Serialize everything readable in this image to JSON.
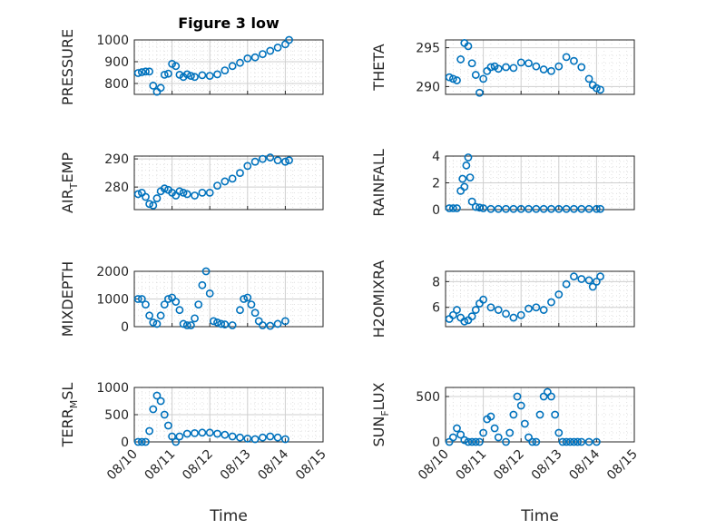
{
  "figure": {
    "title": "Figure 3 low",
    "xlabel": "Time",
    "x_tick_labels": [
      "08/10",
      "08/11",
      "08/12",
      "08/13",
      "08/14",
      "08/15"
    ],
    "marker_color": "#0072BD"
  },
  "chart_data": [
    {
      "type": "scatter",
      "ylabel": "PRESSURE",
      "ylim": [
        750,
        1000
      ],
      "yticks": [
        800,
        900,
        1000
      ],
      "grid": true,
      "x": [
        0.1,
        0.2,
        0.3,
        0.4,
        0.5,
        0.6,
        0.7,
        0.8,
        0.9,
        1.0,
        1.1,
        1.2,
        1.3,
        1.4,
        1.5,
        1.6,
        1.8,
        2.0,
        2.2,
        2.4,
        2.6,
        2.8,
        3.0,
        3.2,
        3.4,
        3.6,
        3.8,
        4.0,
        4.1
      ],
      "y": [
        848,
        852,
        855,
        855,
        790,
        762,
        780,
        840,
        845,
        890,
        880,
        840,
        830,
        842,
        835,
        830,
        838,
        835,
        842,
        860,
        880,
        895,
        915,
        920,
        935,
        950,
        965,
        980,
        1000
      ]
    },
    {
      "type": "scatter",
      "ylabel": "THETA",
      "ylim": [
        289,
        296
      ],
      "yticks": [
        290,
        295
      ],
      "grid": true,
      "x": [
        0.1,
        0.2,
        0.3,
        0.4,
        0.5,
        0.6,
        0.7,
        0.8,
        0.9,
        1.0,
        1.1,
        1.2,
        1.3,
        1.4,
        1.6,
        1.8,
        2.0,
        2.2,
        2.4,
        2.6,
        2.8,
        3.0,
        3.2,
        3.4,
        3.6,
        3.8,
        3.9,
        4.0,
        4.1
      ],
      "y": [
        291.2,
        291.0,
        290.8,
        293.5,
        295.6,
        295.2,
        293.0,
        291.5,
        289.2,
        291.0,
        292.0,
        292.5,
        292.6,
        292.3,
        292.5,
        292.4,
        293.1,
        293.0,
        292.6,
        292.2,
        292.0,
        292.6,
        293.8,
        293.3,
        292.5,
        291.0,
        290.2,
        289.8,
        289.6
      ]
    },
    {
      "type": "scatter",
      "ylabel": "AIR_TEMP",
      "ylim": [
        272,
        291
      ],
      "yticks": [
        280,
        290
      ],
      "grid": true,
      "x": [
        0.1,
        0.2,
        0.3,
        0.4,
        0.5,
        0.6,
        0.7,
        0.8,
        0.9,
        1.0,
        1.1,
        1.2,
        1.3,
        1.4,
        1.6,
        1.8,
        2.0,
        2.2,
        2.4,
        2.6,
        2.8,
        3.0,
        3.2,
        3.4,
        3.6,
        3.8,
        4.0,
        4.1
      ],
      "y": [
        277.5,
        278.0,
        276.5,
        274.0,
        273.5,
        276.0,
        278.5,
        279.5,
        279.0,
        278.0,
        277.0,
        278.5,
        278.0,
        277.5,
        277.0,
        278.0,
        278.0,
        280.5,
        282.0,
        283.0,
        285.0,
        287.5,
        289.0,
        290.0,
        290.5,
        289.5,
        289.0,
        289.5
      ]
    },
    {
      "type": "scatter",
      "ylabel": "RAINFALL",
      "ylim": [
        0,
        4
      ],
      "yticks": [
        0,
        2,
        4
      ],
      "grid": true,
      "x": [
        0.1,
        0.2,
        0.3,
        0.4,
        0.45,
        0.5,
        0.55,
        0.6,
        0.65,
        0.7,
        0.8,
        0.9,
        1.0,
        1.2,
        1.4,
        1.6,
        1.8,
        2.0,
        2.2,
        2.4,
        2.6,
        2.8,
        3.0,
        3.2,
        3.4,
        3.6,
        3.8,
        4.0,
        4.1
      ],
      "y": [
        0.1,
        0.1,
        0.1,
        1.4,
        2.3,
        1.7,
        3.3,
        3.9,
        2.4,
        0.6,
        0.2,
        0.15,
        0.1,
        0.05,
        0.05,
        0.05,
        0.05,
        0.05,
        0.05,
        0.05,
        0.05,
        0.05,
        0.05,
        0.05,
        0.05,
        0.05,
        0.05,
        0.05,
        0.05
      ]
    },
    {
      "type": "scatter",
      "ylabel": "MIXDEPTH",
      "ylim": [
        0,
        2000
      ],
      "yticks": [
        0,
        1000,
        2000
      ],
      "grid": true,
      "x": [
        0.1,
        0.2,
        0.3,
        0.4,
        0.5,
        0.6,
        0.7,
        0.8,
        0.9,
        1.0,
        1.1,
        1.2,
        1.3,
        1.4,
        1.5,
        1.6,
        1.7,
        1.8,
        1.9,
        2.0,
        2.1,
        2.2,
        2.3,
        2.4,
        2.6,
        2.8,
        2.9,
        3.0,
        3.1,
        3.2,
        3.3,
        3.4,
        3.6,
        3.8,
        4.0
      ],
      "y": [
        1000,
        1000,
        800,
        400,
        150,
        100,
        400,
        800,
        1000,
        1050,
        900,
        600,
        100,
        50,
        50,
        300,
        800,
        1500,
        2000,
        1200,
        200,
        150,
        100,
        80,
        50,
        600,
        1000,
        1050,
        800,
        500,
        200,
        50,
        30,
        100,
        200
      ]
    },
    {
      "type": "scatter",
      "ylabel": "H2OMIXRA",
      "ylim": [
        4.5,
        8.8
      ],
      "yticks": [
        6,
        8
      ],
      "grid": true,
      "x": [
        0.1,
        0.2,
        0.3,
        0.4,
        0.5,
        0.6,
        0.7,
        0.8,
        0.9,
        1.0,
        1.2,
        1.4,
        1.6,
        1.8,
        2.0,
        2.2,
        2.4,
        2.6,
        2.8,
        3.0,
        3.2,
        3.4,
        3.6,
        3.8,
        3.9,
        4.0,
        4.1
      ],
      "y": [
        5.1,
        5.4,
        5.8,
        5.2,
        4.9,
        5.0,
        5.3,
        5.8,
        6.3,
        6.6,
        6.0,
        5.8,
        5.5,
        5.2,
        5.4,
        5.9,
        6.0,
        5.8,
        6.4,
        7.0,
        7.8,
        8.4,
        8.2,
        8.1,
        7.6,
        8.0,
        8.4
      ]
    },
    {
      "type": "scatter",
      "ylabel": "TERR_MSL",
      "ylim": [
        0,
        1000
      ],
      "yticks": [
        0,
        500,
        1000
      ],
      "grid": true,
      "x": [
        0.1,
        0.2,
        0.3,
        0.4,
        0.5,
        0.6,
        0.7,
        0.8,
        0.9,
        1.0,
        1.1,
        1.2,
        1.4,
        1.6,
        1.8,
        2.0,
        2.2,
        2.4,
        2.6,
        2.8,
        3.0,
        3.2,
        3.4,
        3.6,
        3.8,
        4.0
      ],
      "y": [
        0,
        0,
        0,
        200,
        600,
        850,
        750,
        500,
        300,
        100,
        0,
        100,
        150,
        160,
        170,
        170,
        150,
        130,
        100,
        80,
        60,
        50,
        80,
        100,
        80,
        50
      ]
    },
    {
      "type": "scatter",
      "ylabel": "SUN_FLUX",
      "ylim": [
        0,
        600
      ],
      "yticks": [
        0,
        500
      ],
      "grid": true,
      "x": [
        0.1,
        0.2,
        0.3,
        0.4,
        0.5,
        0.6,
        0.7,
        0.8,
        0.9,
        1.0,
        1.1,
        1.2,
        1.3,
        1.4,
        1.6,
        1.7,
        1.8,
        1.9,
        2.0,
        2.1,
        2.2,
        2.3,
        2.4,
        2.5,
        2.6,
        2.7,
        2.8,
        2.9,
        3.0,
        3.1,
        3.2,
        3.3,
        3.4,
        3.5,
        3.6,
        3.8,
        4.0
      ],
      "y": [
        0,
        50,
        150,
        80,
        20,
        0,
        0,
        0,
        0,
        100,
        250,
        280,
        150,
        50,
        0,
        100,
        300,
        500,
        400,
        200,
        50,
        0,
        0,
        300,
        500,
        550,
        500,
        300,
        100,
        0,
        0,
        0,
        0,
        0,
        0,
        0,
        0
      ]
    }
  ]
}
